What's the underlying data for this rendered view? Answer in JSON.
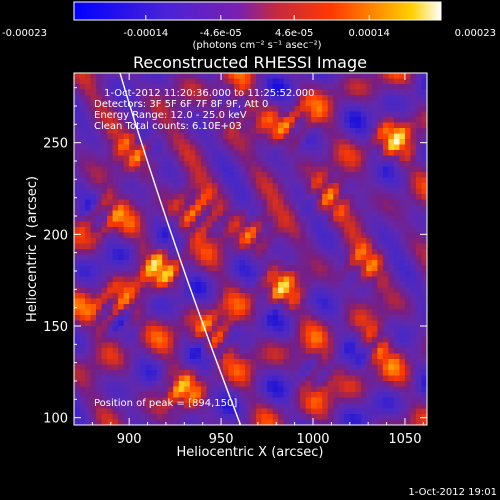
{
  "chart_data": {
    "type": "heatmap",
    "title": "Reconstructed RHESSI Image",
    "xlabel": "Heliocentric X (arcsec)",
    "ylabel": "Heliocentric Y (arcsec)",
    "xlim": [
      870,
      1062
    ],
    "ylim": [
      96,
      288
    ],
    "x_ticks": [
      900,
      950,
      1000,
      1050
    ],
    "y_ticks": [
      100,
      150,
      200,
      250
    ],
    "colorbar": {
      "label": "(photons cm⁻² s⁻¹ asec⁻²)",
      "range": [
        -0.00023,
        0.00023
      ],
      "tick_values": [
        -0.00023,
        -0.00014,
        -4.6e-05,
        4.6e-05,
        0.00014,
        0.00023
      ],
      "tick_labels": [
        "-0.00023",
        "-0.00014",
        "-4.6e-05",
        "4.6e-05",
        "0.00014",
        "0.00023"
      ]
    },
    "annotations": {
      "time_range": "1-Oct-2012 11:20:36.000 to 11:25:52.000",
      "detectors": "Detectors: 3F 5F 6F 7F 8F 9F, Att 0",
      "energy_range": "Energy Range: 12.0 - 25.0 keV",
      "method_counts": "Clean     Total counts: 6.10E+03",
      "peak_position": "Position of peak = [894,150]"
    },
    "limb_curve": {
      "present": true,
      "color": "#ffffff"
    },
    "footer_timestamp": "1-Oct-2012 19:01"
  }
}
